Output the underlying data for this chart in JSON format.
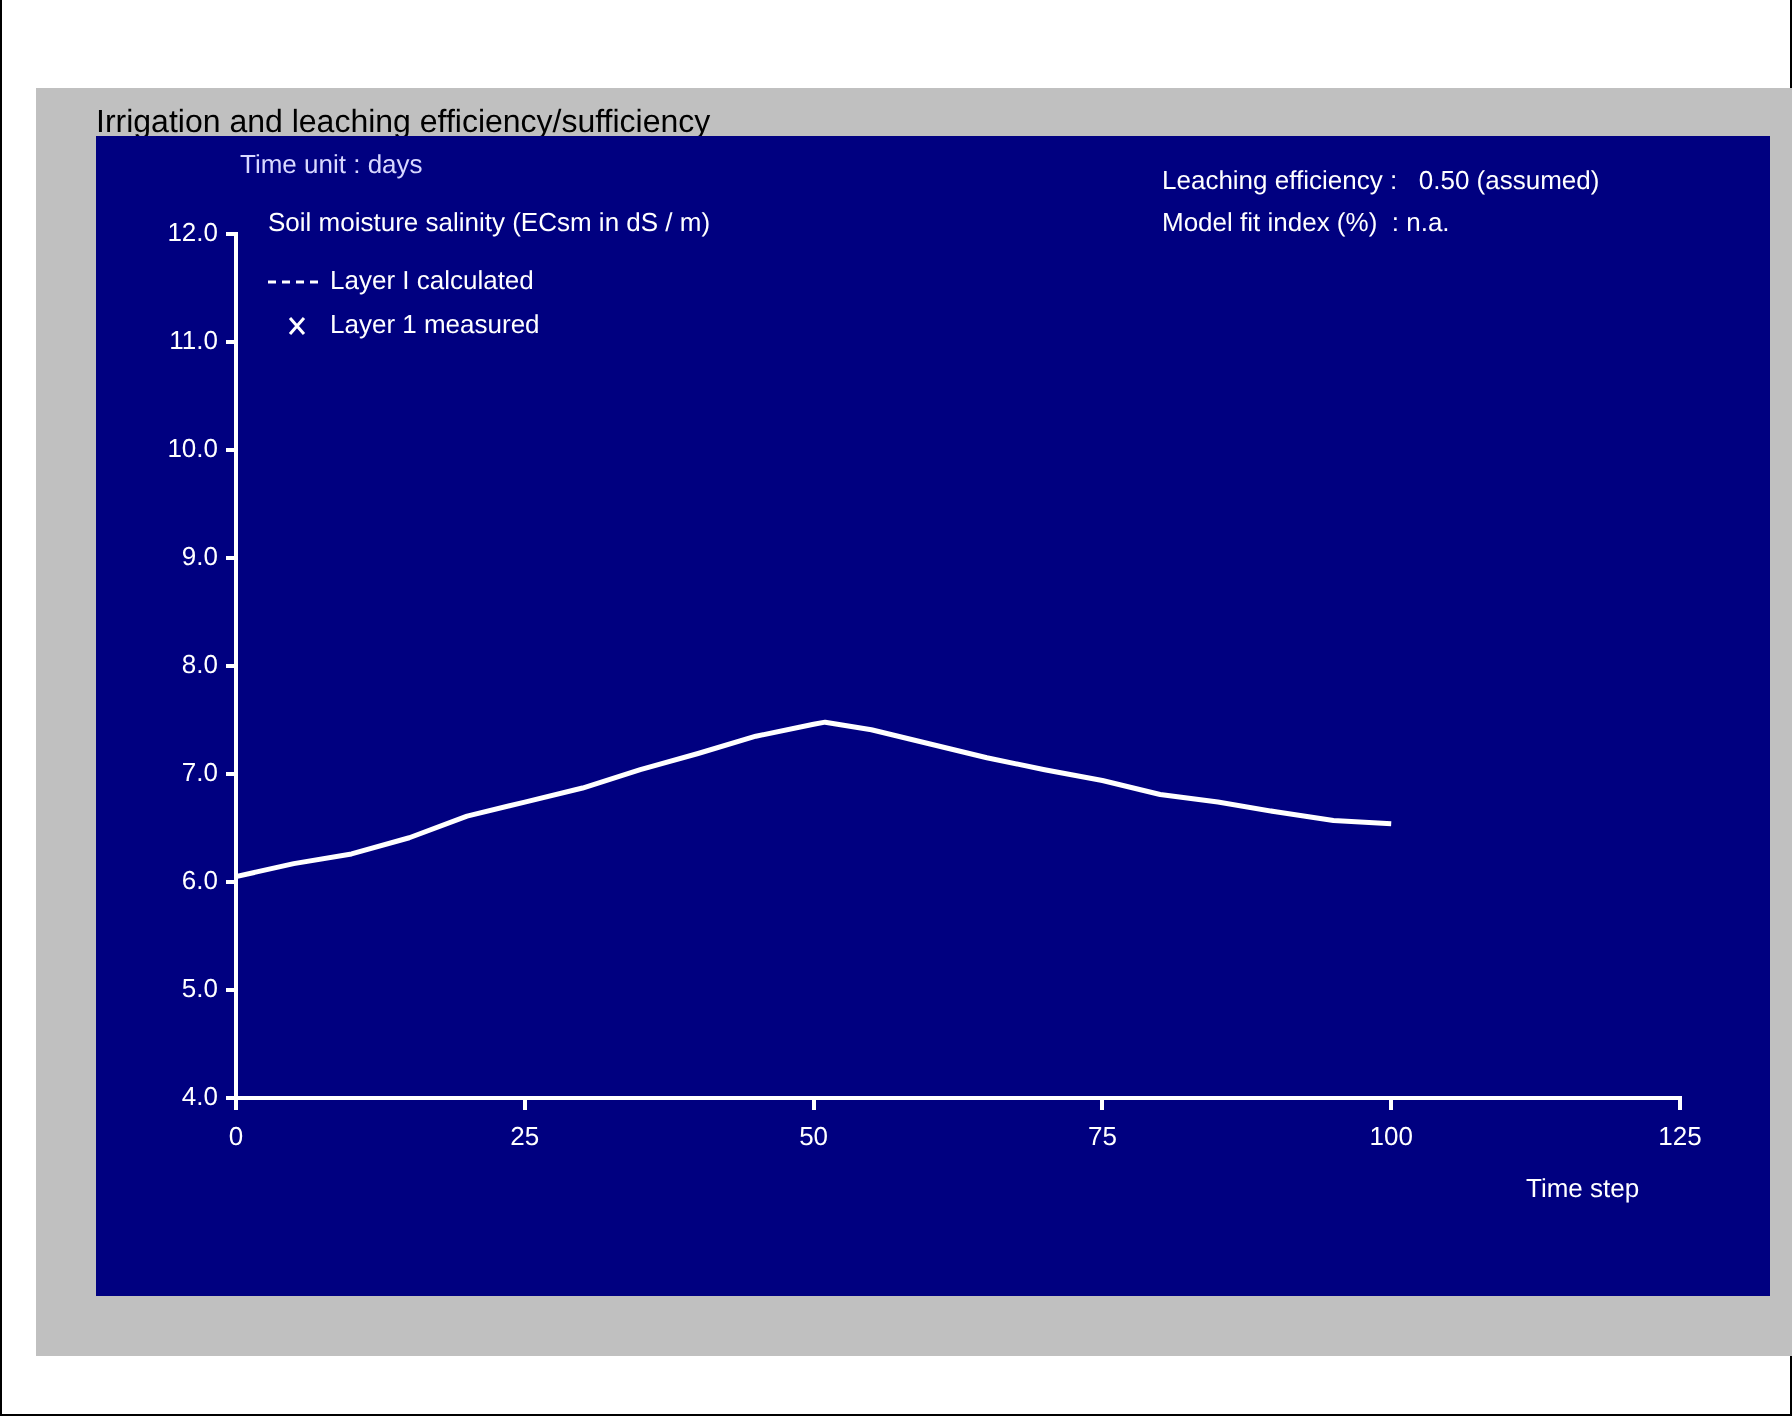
{
  "chart_data": {
    "type": "line",
    "title": "Irrigation and leaching efficiency/sufficiency",
    "xlabel": "Time step",
    "ylabel": "Soil moisture salinity (ECsm in dS / m)",
    "annotations": [
      "Time unit : days",
      "Leaching efficiency :   0.50 (assumed)",
      "Model fit index (%)  : n.a."
    ],
    "x": [
      0,
      5,
      10,
      15,
      20,
      25,
      30,
      35,
      40,
      45,
      50,
      51,
      55,
      60,
      65,
      70,
      75,
      80,
      85,
      90,
      95,
      100
    ],
    "series": [
      {
        "name": "Layer I calculated",
        "color": "#ffffff",
        "line_style": "solid",
        "values": [
          6.05,
          6.17,
          6.26,
          6.41,
          6.61,
          6.74,
          6.87,
          7.04,
          7.19,
          7.35,
          7.46,
          7.48,
          7.41,
          7.28,
          7.15,
          7.04,
          6.94,
          6.81,
          6.74,
          6.65,
          6.57,
          6.54
        ]
      },
      {
        "name": "Layer 1 measured",
        "type": "scatter",
        "marker": "cross",
        "color": "#ffffff",
        "values": [
          null,
          null,
          null,
          null,
          null,
          null,
          null,
          null,
          null,
          null,
          null,
          null,
          null,
          null,
          null,
          null,
          null,
          null,
          null,
          null,
          null,
          null
        ]
      }
    ],
    "xlim": [
      0,
      125
    ],
    "xticks": [
      0,
      25,
      50,
      75,
      100,
      125
    ],
    "ylim": [
      4,
      12
    ],
    "yticks": [
      {
        "value": 4,
        "label": "4.0"
      },
      {
        "value": 5,
        "label": "5.0"
      },
      {
        "value": 6,
        "label": "6.0"
      },
      {
        "value": 7,
        "label": "7.0"
      },
      {
        "value": 8,
        "label": "8.0"
      },
      {
        "value": 9,
        "label": "9.0"
      },
      {
        "value": 10,
        "label": "10.0"
      },
      {
        "value": 11,
        "label": "11.0"
      },
      {
        "value": 12,
        "label": "12.0"
      }
    ],
    "grid": false,
    "legend": "top left",
    "marker": "none"
  }
}
